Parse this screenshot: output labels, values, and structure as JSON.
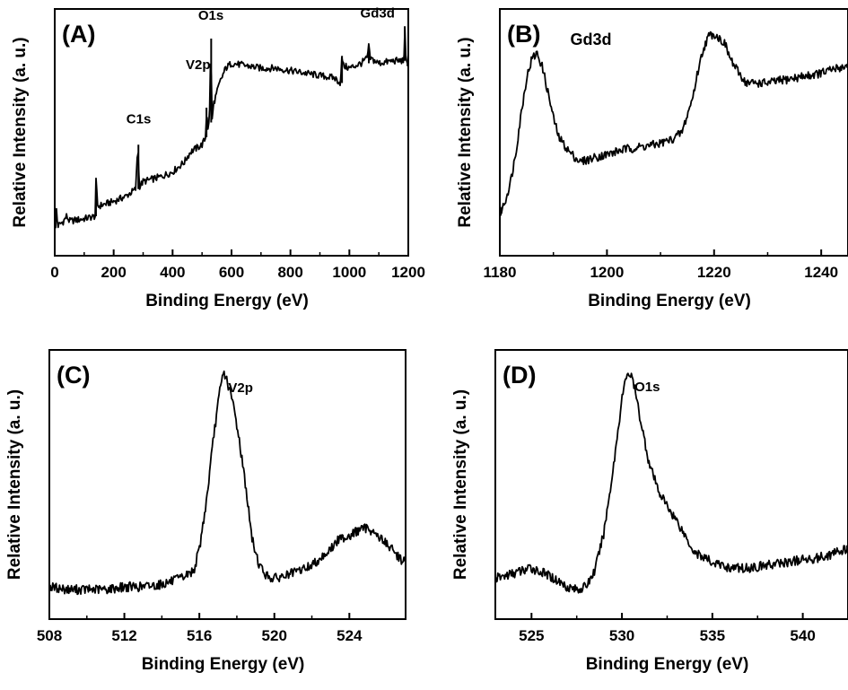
{
  "chart_data": [
    {
      "type": "line",
      "panel_label": "(A)",
      "xlabel": "Binding Energy (eV)",
      "ylabel": "Relative Intensity (a. u.)",
      "xlim": [
        0,
        1200
      ],
      "ylim": [
        0,
        100
      ],
      "xticks": [
        0,
        200,
        400,
        600,
        800,
        1000,
        1200
      ],
      "y_tick_labels": false,
      "annotations": [
        {
          "text": "C1s",
          "x": 285,
          "y": 50
        },
        {
          "text": "V2p",
          "x": 517,
          "y": 72
        },
        {
          "text": "O1s",
          "x": 530,
          "y": 92
        },
        {
          "text": "Gd3d",
          "x": 1187,
          "y": 93
        }
      ],
      "series": [
        {
          "points": [
            [
              0,
              12
            ],
            [
              5,
              20
            ],
            [
              10,
              12
            ],
            [
              30,
              14
            ],
            [
              40,
              16
            ],
            [
              50,
              14
            ],
            [
              100,
              15
            ],
            [
              138,
              16
            ],
            [
              140,
              30
            ],
            [
              146,
              20
            ],
            [
              200,
              22
            ],
            [
              240,
              24
            ],
            [
              275,
              27
            ],
            [
              282,
              45
            ],
            [
              287,
              28
            ],
            [
              300,
              30
            ],
            [
              360,
              32
            ],
            [
              400,
              34
            ],
            [
              440,
              38
            ],
            [
              460,
              42
            ],
            [
              500,
              45
            ],
            [
              513,
              48
            ],
            [
              515,
              60
            ],
            [
              520,
              52
            ],
            [
              525,
              54
            ],
            [
              530,
              88
            ],
            [
              533,
              54
            ],
            [
              540,
              62
            ],
            [
              560,
              70
            ],
            [
              580,
              76
            ],
            [
              600,
              78
            ],
            [
              650,
              77
            ],
            [
              700,
              76
            ],
            [
              750,
              76
            ],
            [
              800,
              75
            ],
            [
              850,
              74
            ],
            [
              900,
              73
            ],
            [
              950,
              72
            ],
            [
              970,
              70
            ],
            [
              975,
              81
            ],
            [
              980,
              77
            ],
            [
              1000,
              76
            ],
            [
              1040,
              78
            ],
            [
              1060,
              80
            ],
            [
              1066,
              85
            ],
            [
              1070,
              80
            ],
            [
              1100,
              78
            ],
            [
              1150,
              79
            ],
            [
              1185,
              79
            ],
            [
              1188,
              93
            ],
            [
              1192,
              78
            ],
            [
              1200,
              78
            ]
          ]
        }
      ]
    },
    {
      "type": "line",
      "panel_label": "(B)",
      "peak_label": "Gd3d",
      "xlabel": "Binding Energy (eV)",
      "ylabel": "Relative Intensity (a. u.)",
      "xlim": [
        1180,
        1245
      ],
      "ylim": [
        0,
        100
      ],
      "xticks": [
        1180,
        1200,
        1220,
        1240
      ],
      "y_tick_labels": false,
      "series": [
        {
          "points": [
            [
              1180,
              17
            ],
            [
              1181,
              22
            ],
            [
              1182,
              30
            ],
            [
              1183,
              42
            ],
            [
              1184,
              58
            ],
            [
              1185,
              72
            ],
            [
              1186,
              80
            ],
            [
              1187,
              82
            ],
            [
              1188,
              76
            ],
            [
              1189,
              66
            ],
            [
              1190,
              56
            ],
            [
              1191,
              48
            ],
            [
              1193,
              42
            ],
            [
              1195,
              38
            ],
            [
              1198,
              40
            ],
            [
              1200,
              41
            ],
            [
              1203,
              43
            ],
            [
              1206,
              44
            ],
            [
              1209,
              45
            ],
            [
              1212,
              47
            ],
            [
              1214,
              50
            ],
            [
              1215,
              57
            ],
            [
              1216,
              64
            ],
            [
              1217,
              75
            ],
            [
              1218,
              84
            ],
            [
              1219,
              89
            ],
            [
              1220,
              90
            ],
            [
              1221,
              88
            ],
            [
              1222,
              86
            ],
            [
              1223,
              80
            ],
            [
              1224,
              76
            ],
            [
              1226,
              70
            ],
            [
              1230,
              70
            ],
            [
              1235,
              72
            ],
            [
              1240,
              74
            ],
            [
              1243,
              76
            ],
            [
              1245,
              77
            ]
          ]
        }
      ]
    },
    {
      "type": "line",
      "panel_label": "(C)",
      "peak_label": "V2p",
      "xlabel": "Binding Energy (eV)",
      "ylabel": "Relative Intensity (a. u.)",
      "xlim": [
        508,
        527
      ],
      "ylim": [
        0,
        100
      ],
      "xticks": [
        508,
        512,
        516,
        520,
        524
      ],
      "y_tick_labels": false,
      "series": [
        {
          "points": [
            [
              508,
              12
            ],
            [
              509,
              11
            ],
            [
              510,
              11
            ],
            [
              511,
              11
            ],
            [
              512,
              12
            ],
            [
              513,
              12
            ],
            [
              514,
              13
            ],
            [
              515,
              15
            ],
            [
              515.7,
              18
            ],
            [
              516,
              26
            ],
            [
              516.4,
              45
            ],
            [
              516.8,
              70
            ],
            [
              517.1,
              85
            ],
            [
              517.3,
              92
            ],
            [
              517.5,
              88
            ],
            [
              517.8,
              80
            ],
            [
              518.1,
              68
            ],
            [
              518.5,
              48
            ],
            [
              518.8,
              30
            ],
            [
              519.2,
              20
            ],
            [
              519.6,
              16
            ],
            [
              520,
              15
            ],
            [
              520.5,
              16
            ],
            [
              521,
              17
            ],
            [
              522,
              20
            ],
            [
              523,
              26
            ],
            [
              523.5,
              30
            ],
            [
              524,
              31
            ],
            [
              524.5,
              33
            ],
            [
              525,
              34
            ],
            [
              525.5,
              31
            ],
            [
              526,
              28
            ],
            [
              526.5,
              24
            ],
            [
              526.8,
              22
            ]
          ]
        }
      ]
    },
    {
      "type": "line",
      "panel_label": "(D)",
      "peak_label": "O1s",
      "xlabel": "Binding Energy (eV)",
      "ylabel": "Relative Intensity (a. u.)",
      "xlim": [
        523,
        542.5
      ],
      "ylim": [
        0,
        100
      ],
      "xticks": [
        525,
        530,
        535,
        540
      ],
      "y_tick_labels": false,
      "series": [
        {
          "points": [
            [
              523,
              15
            ],
            [
              524,
              17
            ],
            [
              525,
              19
            ],
            [
              526,
              16
            ],
            [
              527,
              12
            ],
            [
              527.5,
              11
            ],
            [
              528,
              12
            ],
            [
              528.5,
              18
            ],
            [
              529,
              32
            ],
            [
              529.5,
              55
            ],
            [
              530,
              82
            ],
            [
              530.3,
              92
            ],
            [
              530.6,
              89
            ],
            [
              531,
              75
            ],
            [
              531.5,
              58
            ],
            [
              532,
              48
            ],
            [
              532.5,
              42
            ],
            [
              533,
              37
            ],
            [
              533.5,
              31
            ],
            [
              534,
              25
            ],
            [
              535,
              21
            ],
            [
              536,
              19
            ],
            [
              537,
              19
            ],
            [
              538,
              20
            ],
            [
              539,
              21
            ],
            [
              540,
              22
            ],
            [
              541,
              23
            ],
            [
              542,
              25
            ],
            [
              542.5,
              26
            ]
          ]
        }
      ]
    }
  ]
}
